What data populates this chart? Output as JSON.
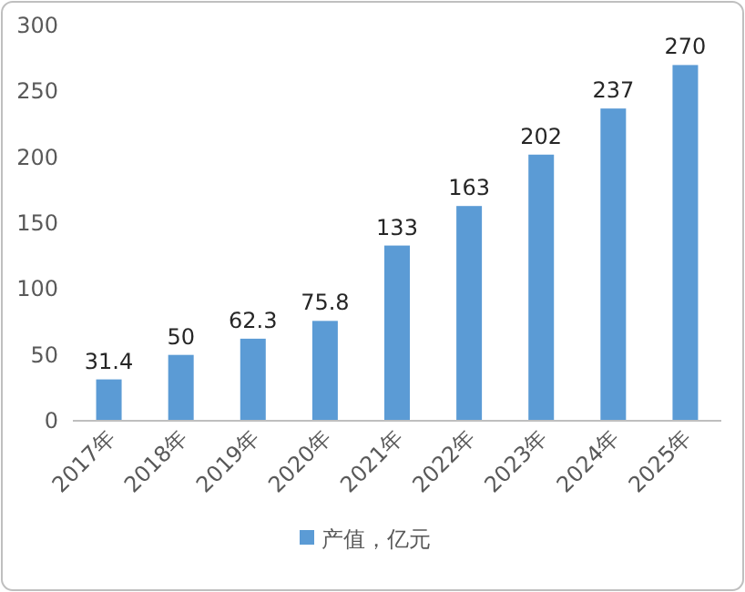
{
  "chart_data": {
    "type": "bar",
    "categories": [
      "2017年",
      "2018年",
      "2019年",
      "2020年",
      "2021年",
      "2022年",
      "2023年",
      "2024年",
      "2025年"
    ],
    "series": [
      {
        "name": "产值，亿元",
        "color": "#5b9bd5",
        "values": [
          31.4,
          50,
          62.3,
          75.8,
          133,
          163,
          202,
          237,
          270
        ]
      }
    ],
    "ylim": [
      0,
      300
    ],
    "yticks": [
      0,
      50,
      100,
      150,
      200,
      250,
      300
    ],
    "data_labels": true,
    "legend": "bottom"
  }
}
